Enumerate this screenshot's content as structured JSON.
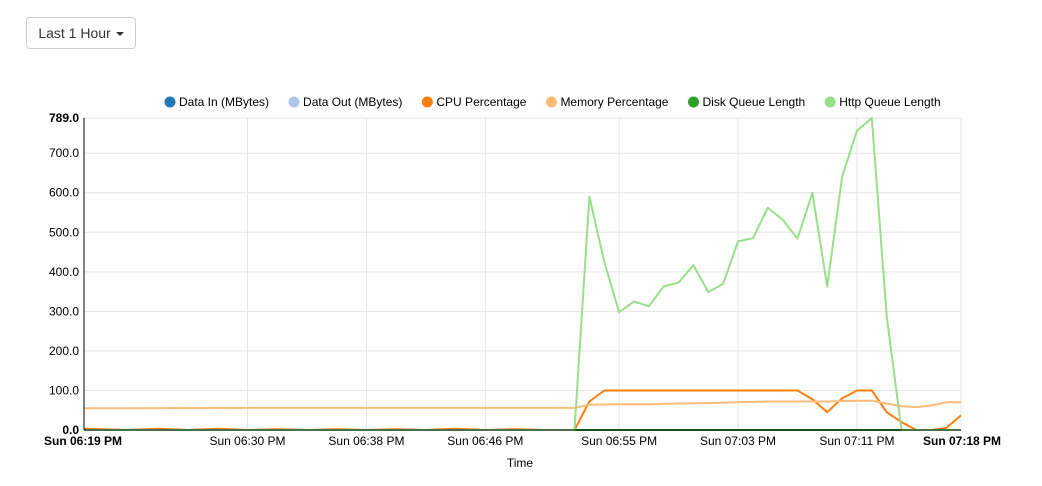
{
  "toolbar": {
    "range_label": "Last 1 Hour"
  },
  "chart_data": {
    "type": "line",
    "xlabel": "Time",
    "ylabel": "",
    "ylim": [
      0,
      789
    ],
    "y_ticks": [
      {
        "value": 0,
        "label": "0.0",
        "bold": true
      },
      {
        "value": 100,
        "label": "100.0"
      },
      {
        "value": 200,
        "label": "200.0"
      },
      {
        "value": 300,
        "label": "300.0"
      },
      {
        "value": 400,
        "label": "400.0"
      },
      {
        "value": 500,
        "label": "500.0"
      },
      {
        "value": 600,
        "label": "600.0"
      },
      {
        "value": 700,
        "label": "700.0"
      },
      {
        "value": 789,
        "label": "789.0",
        "bold": true
      }
    ],
    "xlim": [
      "06:19",
      "07:18"
    ],
    "x_ticks": [
      {
        "time": "06:19",
        "label": "Sun 06:19 PM",
        "bold": true
      },
      {
        "time": "06:30",
        "label": "Sun 06:30 PM"
      },
      {
        "time": "06:38",
        "label": "Sun 06:38 PM"
      },
      {
        "time": "06:46",
        "label": "Sun 06:46 PM"
      },
      {
        "time": "06:55",
        "label": "Sun 06:55 PM"
      },
      {
        "time": "07:03",
        "label": "Sun 07:03 PM"
      },
      {
        "time": "07:11",
        "label": "Sun 07:11 PM"
      },
      {
        "time": "07:18",
        "label": "Sun 07:18 PM",
        "bold": true
      }
    ],
    "grid": true,
    "legend_position": "top",
    "series": [
      {
        "name": "Data In (MBytes)",
        "color": "#1f77b4",
        "x": [
          "06:19",
          "06:30",
          "06:38",
          "06:46",
          "06:55",
          "07:03",
          "07:11",
          "07:18"
        ],
        "y": [
          0,
          0,
          0,
          0,
          0,
          0,
          0,
          0
        ]
      },
      {
        "name": "Data Out (MBytes)",
        "color": "#aec7e8",
        "x": [
          "06:19",
          "06:30",
          "06:38",
          "06:46",
          "06:55",
          "07:03",
          "07:11",
          "07:18"
        ],
        "y": [
          0,
          0,
          0,
          0,
          0,
          0,
          0,
          0
        ]
      },
      {
        "name": "CPU Percentage",
        "color": "#ff7f0e",
        "x": [
          "06:19",
          "06:22",
          "06:24",
          "06:26",
          "06:28",
          "06:30",
          "06:32",
          "06:34",
          "06:36",
          "06:38",
          "06:40",
          "06:42",
          "06:44",
          "06:46",
          "06:48",
          "06:50",
          "06:52",
          "06:53",
          "06:54",
          "06:55",
          "06:57",
          "06:59",
          "07:01",
          "07:03",
          "07:05",
          "07:07",
          "07:08",
          "07:09",
          "07:10",
          "07:11",
          "07:12",
          "07:13",
          "07:14",
          "07:15",
          "07:16",
          "07:17",
          "07:18"
        ],
        "y": [
          3,
          0,
          3,
          0,
          3,
          0,
          2,
          0,
          2,
          0,
          2,
          0,
          3,
          0,
          2,
          0,
          0,
          72,
          100,
          100,
          100,
          100,
          100,
          100,
          100,
          100,
          78,
          45,
          80,
          100,
          100,
          45,
          20,
          0,
          0,
          5,
          37
        ]
      },
      {
        "name": "Memory Percentage",
        "color": "#ffbb78",
        "x": [
          "06:19",
          "06:30",
          "06:38",
          "06:46",
          "06:52",
          "06:53",
          "06:55",
          "06:57",
          "06:59",
          "07:01",
          "07:03",
          "07:05",
          "07:07",
          "07:09",
          "07:11",
          "07:12",
          "07:13",
          "07:14",
          "07:15",
          "07:16",
          "07:17",
          "07:18"
        ],
        "y": [
          55,
          56,
          56,
          56,
          56,
          64,
          65,
          65,
          67,
          68,
          70,
          72,
          72,
          72,
          74,
          74,
          67,
          60,
          58,
          62,
          70,
          70
        ]
      },
      {
        "name": "Disk Queue Length",
        "color": "#2ca02c",
        "x": [
          "06:19",
          "06:30",
          "06:38",
          "06:46",
          "06:55",
          "07:03",
          "07:11",
          "07:18"
        ],
        "y": [
          0,
          0,
          0,
          0,
          0,
          0,
          0,
          0
        ]
      },
      {
        "name": "Http Queue Length",
        "color": "#98df8a",
        "x": [
          "06:19",
          "06:52",
          "06:53",
          "06:54",
          "06:55",
          "06:56",
          "06:57",
          "06:58",
          "06:59",
          "07:00",
          "07:01",
          "07:02",
          "07:03",
          "07:04",
          "07:05",
          "07:06",
          "07:07",
          "07:08",
          "07:09",
          "07:10",
          "07:11",
          "07:12",
          "07:13",
          "07:14",
          "07:18"
        ],
        "y": [
          0,
          0,
          590,
          425,
          298,
          325,
          313,
          363,
          373,
          417,
          349,
          370,
          477,
          485,
          562,
          532,
          484,
          600,
          363,
          640,
          757,
          789,
          288,
          0,
          0
        ]
      }
    ]
  }
}
